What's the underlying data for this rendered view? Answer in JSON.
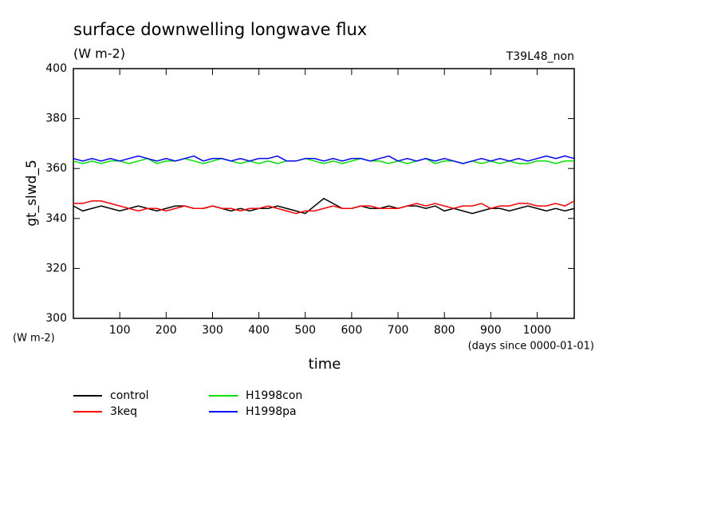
{
  "chart_data": {
    "type": "line",
    "title": "surface downwelling longwave flux",
    "subtitle": "(W m-2)",
    "annotation": "T39L48_non",
    "ylabel": "gt_slwd_5",
    "y_unit_label": "(W m-2)",
    "xlabel": "time",
    "x_unit_label": "(days since 0000-01-01)",
    "x": [
      0,
      20,
      40,
      60,
      80,
      100,
      120,
      140,
      160,
      180,
      200,
      220,
      240,
      260,
      280,
      300,
      320,
      340,
      360,
      380,
      400,
      420,
      440,
      460,
      480,
      500,
      520,
      540,
      560,
      580,
      600,
      620,
      640,
      660,
      680,
      700,
      720,
      740,
      760,
      780,
      800,
      820,
      840,
      860,
      880,
      900,
      920,
      940,
      960,
      980,
      1000,
      1020,
      1040,
      1060,
      1080
    ],
    "series": [
      {
        "name": "control",
        "color": "#000000",
        "values": [
          345,
          343,
          344,
          345,
          344,
          343,
          344,
          345,
          344,
          343,
          344,
          345,
          345,
          344,
          344,
          345,
          344,
          343,
          344,
          343,
          344,
          344,
          345,
          344,
          343,
          342,
          345,
          348,
          346,
          344,
          344,
          345,
          344,
          344,
          345,
          344,
          345,
          345,
          344,
          345,
          343,
          344,
          343,
          342,
          343,
          344,
          344,
          343,
          344,
          345,
          344,
          343,
          344,
          343,
          344
        ]
      },
      {
        "name": "3keq",
        "color": "#ff0000",
        "values": [
          346,
          346,
          347,
          347,
          346,
          345,
          344,
          343,
          344,
          344,
          343,
          344,
          345,
          344,
          344,
          345,
          344,
          344,
          343,
          344,
          344,
          345,
          344,
          343,
          342,
          343,
          343,
          344,
          345,
          344,
          344,
          345,
          345,
          344,
          344,
          344,
          345,
          346,
          345,
          346,
          345,
          344,
          345,
          345,
          346,
          344,
          345,
          345,
          346,
          346,
          345,
          345,
          346,
          345,
          347
        ]
      },
      {
        "name": "H1998con",
        "color": "#00e000",
        "values": [
          363,
          362,
          363,
          362,
          363,
          363,
          362,
          363,
          364,
          362,
          363,
          363,
          364,
          363,
          362,
          363,
          364,
          363,
          362,
          363,
          362,
          363,
          362,
          363,
          363,
          364,
          363,
          362,
          363,
          362,
          363,
          364,
          363,
          363,
          362,
          363,
          362,
          363,
          364,
          362,
          363,
          363,
          362,
          363,
          362,
          363,
          362,
          363,
          362,
          362,
          363,
          363,
          362,
          363,
          363
        ]
      },
      {
        "name": "H1998pa",
        "color": "#0000ff",
        "values": [
          364,
          363,
          364,
          363,
          364,
          363,
          364,
          365,
          364,
          363,
          364,
          363,
          364,
          365,
          363,
          364,
          364,
          363,
          364,
          363,
          364,
          364,
          365,
          363,
          363,
          364,
          364,
          363,
          364,
          363,
          364,
          364,
          363,
          364,
          365,
          363,
          364,
          363,
          364,
          363,
          364,
          363,
          362,
          363,
          364,
          363,
          364,
          363,
          364,
          363,
          364,
          365,
          364,
          365,
          364
        ]
      }
    ],
    "xlim": [
      0,
      1080
    ],
    "xticks": [
      100,
      200,
      300,
      400,
      500,
      600,
      700,
      800,
      900,
      1000
    ],
    "ylim": [
      300,
      400
    ],
    "yticks": [
      300,
      320,
      340,
      360,
      380,
      400
    ]
  }
}
